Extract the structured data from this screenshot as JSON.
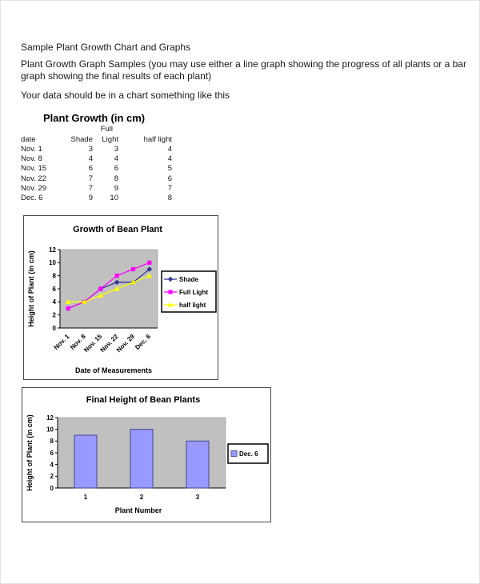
{
  "document": {
    "heading": "Sample Plant Growth Chart and Graphs",
    "paragraph": "Plant Growth Graph Samples (you may use either a line graph showing the progress of all plants or a bar graph showing the final results of each plant)",
    "note": "Your data should be in a chart something like this"
  },
  "table": {
    "title": "Plant Growth (in cm)",
    "header_over": "Full",
    "columns": [
      "date",
      "Shade",
      "Light",
      "half light"
    ],
    "rows": [
      [
        "Nov. 1",
        3,
        3,
        4
      ],
      [
        "Nov. 8",
        4,
        4,
        4
      ],
      [
        "Nov. 15",
        6,
        6,
        5
      ],
      [
        "Nov. 22",
        7,
        8,
        6
      ],
      [
        "Nov. 29",
        7,
        9,
        7
      ],
      [
        "Dec. 6",
        9,
        10,
        8
      ]
    ]
  },
  "chart_data": [
    {
      "type": "line",
      "title": "Growth of Bean Plant",
      "xlabel": "Date of Measurements",
      "ylabel": "Height of Plant (in cm)",
      "categories": [
        "Nov. 1",
        "Nov. 8",
        "Nov. 15",
        "Nov. 22",
        "Nov. 29",
        "Dec. 6"
      ],
      "series": [
        {
          "name": "Shade",
          "color": "#333399",
          "marker": "diamond",
          "values": [
            3,
            4,
            6,
            7,
            7,
            9
          ]
        },
        {
          "name": "Full Light",
          "color": "#ff00ff",
          "marker": "square",
          "values": [
            3,
            4,
            6,
            8,
            9,
            10
          ]
        },
        {
          "name": "half light",
          "color": "#ffff00",
          "marker": "triangle",
          "values": [
            4,
            4,
            5,
            6,
            7,
            8
          ]
        }
      ],
      "ylim": [
        0,
        12
      ],
      "ytick_step": 2,
      "grid": false,
      "plot_bg": "#c0c0c0",
      "legend_position": "right"
    },
    {
      "type": "bar",
      "title": "Final Height of Bean Plants",
      "xlabel": "Plant Number",
      "ylabel": "Height of Plant (in cm)",
      "categories": [
        "1",
        "2",
        "3"
      ],
      "series": [
        {
          "name": "Dec. 6",
          "color": "#9999ff",
          "border": "#55559b",
          "values": [
            9,
            10,
            8
          ]
        }
      ],
      "ylim": [
        0,
        12
      ],
      "ytick_step": 2,
      "grid": false,
      "plot_bg": "#c0c0c0",
      "legend_position": "right"
    }
  ]
}
